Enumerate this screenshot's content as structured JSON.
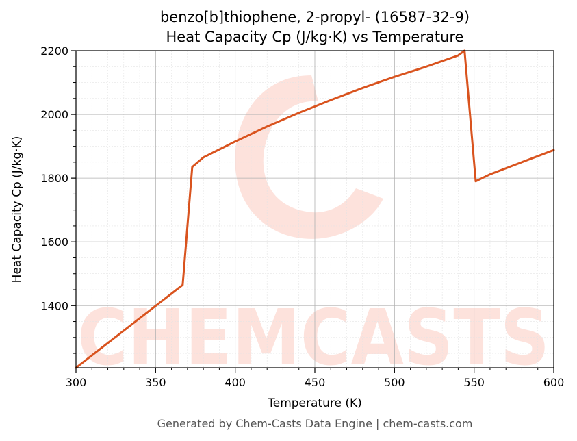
{
  "chart_data": {
    "type": "line",
    "title_line1": "benzo[b]thiophene, 2-propyl- (16587-32-9)",
    "title_line2": "Heat Capacity Cp (J/kg·K) vs Temperature",
    "xlabel": "Temperature (K)",
    "ylabel": "Heat Capacity Cp (J/kg·K)",
    "xlim": [
      300,
      600
    ],
    "ylim": [
      1205,
      2200
    ],
    "xticks": [
      300,
      350,
      400,
      450,
      500,
      550,
      600
    ],
    "yticks": [
      1400,
      1600,
      1800,
      2000,
      2200
    ],
    "grid": true,
    "series": [
      {
        "color": "#d9531e",
        "x": [
          300,
          367,
          373,
          380,
          400,
          420,
          440,
          460,
          480,
          500,
          520,
          540,
          544,
          551,
          560,
          580,
          600
        ],
        "y": [
          1205,
          1465,
          1835,
          1865,
          1915,
          1962,
          2005,
          2045,
          2083,
          2118,
          2150,
          2185,
          2200,
          1790,
          1812,
          1850,
          1888
        ]
      }
    ]
  },
  "watermark": {
    "text": "CHEMCASTS",
    "color": "#fde2dc"
  },
  "footer": "Generated by Chem-Casts Data Engine | chem-casts.com"
}
